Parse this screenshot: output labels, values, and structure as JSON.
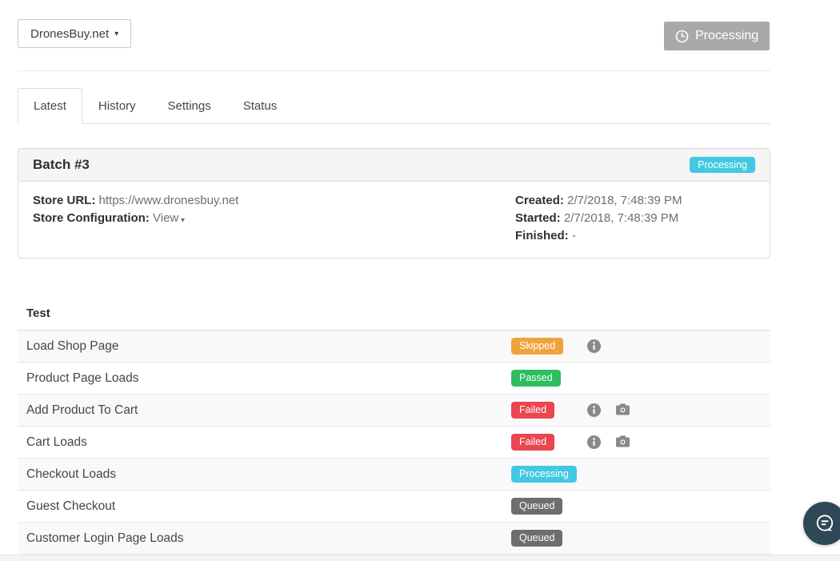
{
  "header": {
    "store_selector": {
      "label": "DronesBuy.net",
      "caret": "▾"
    },
    "status_button": {
      "label": "Processing"
    }
  },
  "tabs": [
    {
      "label": "Latest",
      "active": true
    },
    {
      "label": "History",
      "active": false
    },
    {
      "label": "Settings",
      "active": false
    },
    {
      "label": "Status",
      "active": false
    }
  ],
  "batch_panel": {
    "title": "Batch #3",
    "status_badge": {
      "label": "Processing",
      "type": "processing"
    },
    "details_left": [
      {
        "label": "Store URL:",
        "value": "https://www.dronesbuy.net",
        "link": false
      },
      {
        "label": "Store Configuration:",
        "value": "View",
        "link": true,
        "caret": "▾"
      }
    ],
    "details_right": [
      {
        "label": "Created:",
        "value": "2/7/2018, 7:48:39 PM"
      },
      {
        "label": "Started:",
        "value": "2/7/2018, 7:48:39 PM"
      },
      {
        "label": "Finished:",
        "value": "-"
      }
    ]
  },
  "tests": {
    "header": "Test",
    "rows": [
      {
        "name": "Load Shop Page",
        "status": "Skipped",
        "status_type": "skipped",
        "info": true,
        "screenshot": false
      },
      {
        "name": "Product Page Loads",
        "status": "Passed",
        "status_type": "passed",
        "info": false,
        "screenshot": false
      },
      {
        "name": "Add Product To Cart",
        "status": "Failed",
        "status_type": "failed",
        "info": true,
        "screenshot": true
      },
      {
        "name": "Cart Loads",
        "status": "Failed",
        "status_type": "failed",
        "info": true,
        "screenshot": true
      },
      {
        "name": "Checkout Loads",
        "status": "Processing",
        "status_type": "processing",
        "info": false,
        "screenshot": false
      },
      {
        "name": "Guest Checkout",
        "status": "Queued",
        "status_type": "queued",
        "info": false,
        "screenshot": false
      },
      {
        "name": "Customer Login Page Loads",
        "status": "Queued",
        "status_type": "queued",
        "info": false,
        "screenshot": false
      }
    ]
  },
  "colors": {
    "skipped": "#f0a23c",
    "passed": "#2dbe5e",
    "failed": "#e9464f",
    "processing": "#41c9e2",
    "queued": "#6e6e6e",
    "top_button_gray": "#a9a9a9",
    "icon_gray": "#8a8a8a",
    "chat_fab": "#2e4858"
  }
}
